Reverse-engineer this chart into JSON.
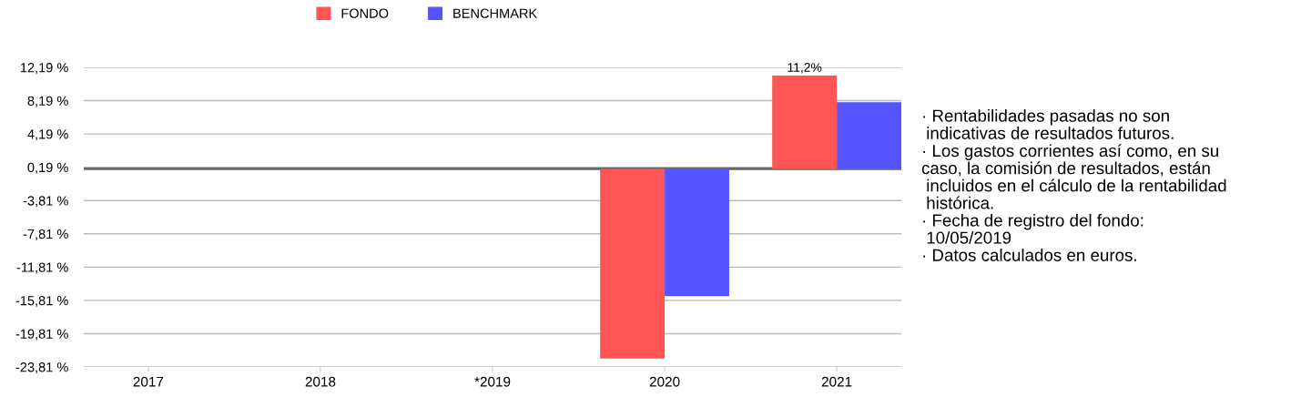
{
  "chart_data": {
    "type": "bar",
    "categories": [
      "2017",
      "2018",
      "*2019",
      "2020",
      "2021"
    ],
    "series": [
      {
        "name": "FONDO",
        "color": "#ff5555",
        "values": [
          null,
          null,
          null,
          -22.8,
          11.2
        ],
        "value_labels": [
          null,
          null,
          null,
          null,
          "11,2%"
        ]
      },
      {
        "name": "BENCHMARK",
        "color": "#5555ff",
        "values": [
          null,
          null,
          null,
          -15.3,
          8.0
        ]
      }
    ],
    "ylim": [
      -23.81,
      12.19
    ],
    "yticks": [
      {
        "value": 12.19,
        "label": "12,19 %"
      },
      {
        "value": 8.19,
        "label": "8,19 %"
      },
      {
        "value": 4.19,
        "label": "4,19 %"
      },
      {
        "value": 0.19,
        "label": "0,19 %"
      },
      {
        "value": -3.81,
        "label": "-3,81 %"
      },
      {
        "value": -7.81,
        "label": "-7,81 %"
      },
      {
        "value": -11.81,
        "label": "-11,81 %"
      },
      {
        "value": -15.81,
        "label": "-15,81 %"
      },
      {
        "value": -19.81,
        "label": "-19,81 %"
      },
      {
        "value": -23.81,
        "label": "-23,81 %"
      }
    ],
    "grid": "y",
    "legend": "top",
    "annotations": [
      "· Rentabilidades pasadas no son\n indicativas de resultados futuros.\n· Los gastos corrientes así como, en su\ncaso, la comisión de resultados, están\n incluidos en el cálculo de la rentabilidad\n histórica.\n· Fecha de registro del fondo:\n 10/05/2019\n· Datos calculados en euros."
    ]
  }
}
